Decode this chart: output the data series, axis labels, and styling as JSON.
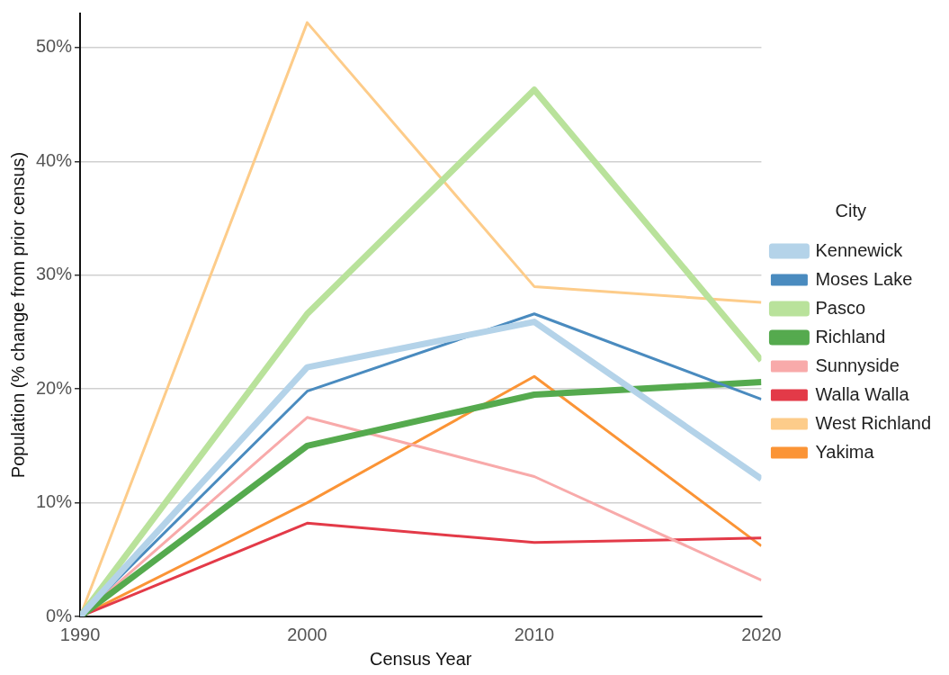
{
  "chart_data": {
    "type": "line",
    "xlabel": "Census Year",
    "ylabel": "Population (% change from prior census)",
    "legend_title": "City",
    "legend": "right",
    "grid": "y",
    "marker": "none",
    "line_style": "solid",
    "x": [
      1990,
      2000,
      2010,
      2020
    ],
    "xlim": [
      1990,
      2020
    ],
    "xticks": [
      1990,
      2000,
      2010,
      2020
    ],
    "ylim": [
      0,
      53
    ],
    "yticks": [
      {
        "value": 0,
        "label": "0%"
      },
      {
        "value": 10,
        "label": "10%"
      },
      {
        "value": 20,
        "label": "20%"
      },
      {
        "value": 30,
        "label": "30%"
      },
      {
        "value": 40,
        "label": "40%"
      },
      {
        "value": 50,
        "label": "50%"
      }
    ],
    "series": [
      {
        "name": "Kennewick",
        "color": "#b4d3e9",
        "values": [
          0,
          21.9,
          25.9,
          12.1
        ]
      },
      {
        "name": "Moses Lake",
        "color": "#4a8bbf",
        "values": [
          0,
          19.8,
          26.6,
          19.1
        ]
      },
      {
        "name": "Pasco",
        "color": "#b9e29b",
        "values": [
          0,
          26.6,
          46.3,
          22.5
        ]
      },
      {
        "name": "Richland",
        "color": "#55aa4e",
        "values": [
          0,
          15.0,
          19.5,
          20.6
        ]
      },
      {
        "name": "Sunnyside",
        "color": "#f8aaaa",
        "values": [
          0,
          17.5,
          12.3,
          3.2
        ]
      },
      {
        "name": "Walla Walla",
        "color": "#e33a48",
        "values": [
          0,
          8.2,
          6.5,
          6.9
        ]
      },
      {
        "name": "West Richland",
        "color": "#fdcc8a",
        "values": [
          0,
          52.2,
          29.0,
          27.6
        ]
      },
      {
        "name": "Yakima",
        "color": "#fb9436",
        "values": [
          0,
          10.0,
          21.1,
          6.2
        ]
      }
    ]
  }
}
